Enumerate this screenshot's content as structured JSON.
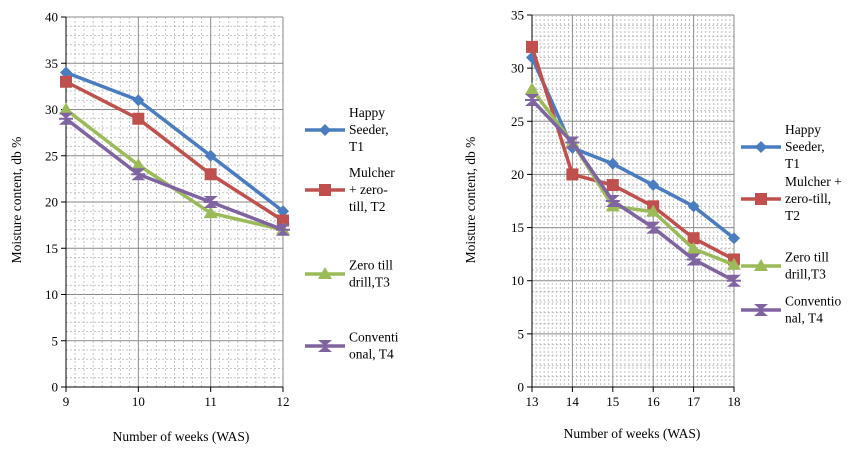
{
  "chart_data": [
    {
      "type": "line",
      "title": "",
      "xlabel": "Number of weeks (WAS)",
      "ylabel": "Moisture content, db %",
      "x": [
        9,
        10,
        11,
        12
      ],
      "xlim": [
        9,
        12
      ],
      "ylim": [
        0,
        40
      ],
      "ymajor": 5,
      "grid": "major and minor gridlines",
      "legend": "right",
      "series": [
        {
          "name": "Happy Seeder, T1",
          "legend_lines": [
            "Happy",
            "Seeder,",
            "T1"
          ],
          "color": "#4a7cc0",
          "marker": "diamond",
          "values": [
            34,
            31,
            25,
            19
          ]
        },
        {
          "name": "Mulcher + zero-till, T2",
          "legend_lines": [
            "Mulcher",
            "+ zero-",
            "till, T2"
          ],
          "color": "#c0504d",
          "marker": "square",
          "values": [
            33,
            29,
            23,
            18
          ]
        },
        {
          "name": "Zero till drill,T3",
          "legend_lines": [
            "Zero till",
            "drill,T3"
          ],
          "color": "#9bbb59",
          "marker": "triangle",
          "values": [
            30,
            24,
            18.8,
            17
          ]
        },
        {
          "name": "Conventional, T4",
          "legend_lines": [
            "Conventi",
            "onal, T4"
          ],
          "color": "#8064a2",
          "marker": "star",
          "values": [
            29,
            23,
            20,
            17
          ]
        }
      ]
    },
    {
      "type": "line",
      "title": "",
      "xlabel": "Number of weeks (WAS)",
      "ylabel": "Moisture content, db %",
      "x": [
        13,
        14,
        15,
        16,
        17,
        18
      ],
      "xlim": [
        13,
        18
      ],
      "ylim": [
        0,
        35
      ],
      "ymajor": 5,
      "grid": "major and minor gridlines",
      "legend": "right",
      "series": [
        {
          "name": "Happy Seeder, T1",
          "legend_lines": [
            "Happy",
            "Seeder,",
            "T1"
          ],
          "color": "#4a7cc0",
          "marker": "diamond",
          "values": [
            31,
            22.5,
            21,
            19,
            17,
            14
          ]
        },
        {
          "name": "Mulcher + zero-till, T2",
          "legend_lines": [
            "Mulcher +",
            "zero-till,",
            "T2"
          ],
          "color": "#c0504d",
          "marker": "square",
          "values": [
            32,
            20,
            19,
            17,
            14,
            12
          ]
        },
        {
          "name": "Zero till drill,T3",
          "legend_lines": [
            "Zero till",
            "drill,T3"
          ],
          "color": "#9bbb59",
          "marker": "triangle",
          "values": [
            28,
            23,
            17,
            16.5,
            13,
            11.5
          ]
        },
        {
          "name": "Conventional, T4",
          "legend_lines": [
            "Conventio",
            "nal, T4"
          ],
          "color": "#8064a2",
          "marker": "star",
          "values": [
            27,
            23,
            17.5,
            15,
            12,
            10
          ]
        }
      ]
    }
  ]
}
